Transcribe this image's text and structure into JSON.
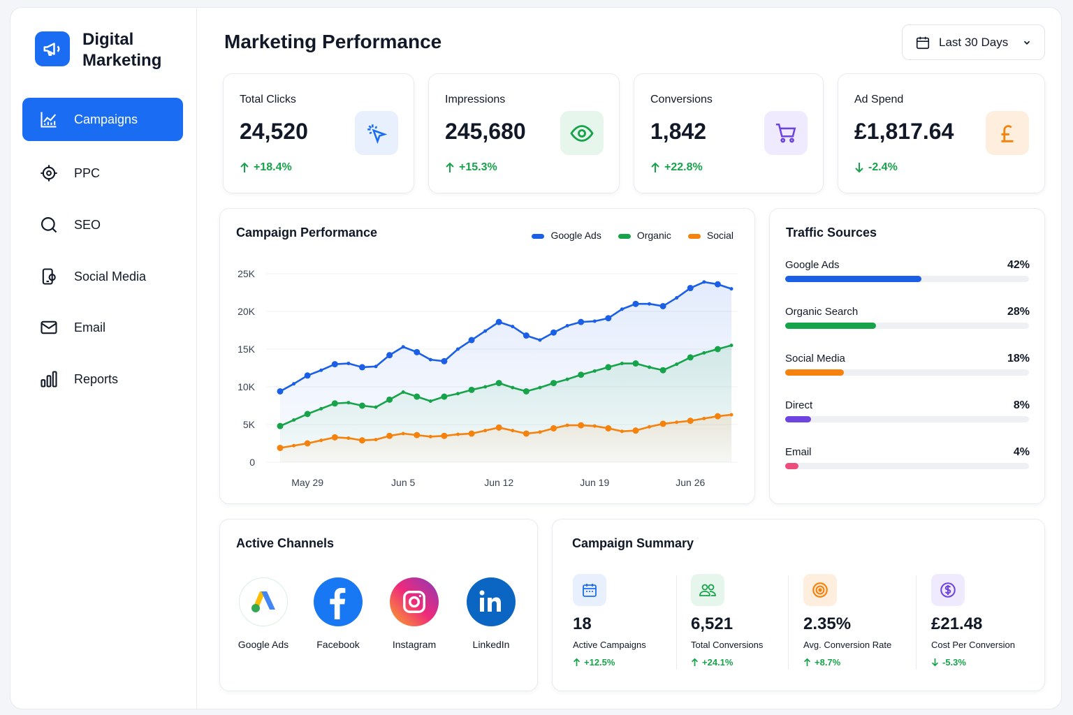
{
  "sidebar": {
    "brand": "Digital Marketing",
    "nav": [
      "Campaigns",
      "PPC",
      "SEO",
      "Social Media",
      "Email",
      "Reports"
    ]
  },
  "header": {
    "title": "Marketing Performance",
    "range": "Last 30 Days"
  },
  "kpis": [
    {
      "label": "Total Clicks",
      "value": "24,520",
      "change": "+18.4%"
    },
    {
      "label": "Impressions",
      "value": "245,680",
      "change": "+15.3%"
    },
    {
      "label": "Conversions",
      "value": "1,842",
      "change": "+22.8%"
    },
    {
      "label": "Ad Spend",
      "value": "£1,817.64",
      "change": "-2.4%"
    }
  ],
  "chart_data": [
    {
      "type": "line",
      "title": "Campaign Performance",
      "categories": [
        null,
        null,
        "May 29",
        null,
        null,
        null,
        null,
        null,
        null,
        "Jun 5",
        null,
        null,
        null,
        null,
        null,
        null,
        "Jun 12",
        null,
        null,
        null,
        null,
        null,
        null,
        "Jun 19",
        null,
        null,
        null,
        null,
        null,
        null,
        "Jun 26",
        null,
        null,
        null
      ],
      "ylim": [
        0,
        25000
      ],
      "yticks": [
        0,
        {
          "value": 5000,
          "label": "5K"
        },
        {
          "value": 10000,
          "label": "10K"
        },
        {
          "value": 15000,
          "label": "15K"
        },
        {
          "value": 20000,
          "label": "20K"
        },
        {
          "value": 25000,
          "label": "25K"
        }
      ],
      "grid": true,
      "series": [
        {
          "name": "Google Ads",
          "color": "#1a5fe6",
          "values": [
            9400,
            10400,
            11500,
            12200,
            13000,
            13100,
            12600,
            12700,
            14200,
            15300,
            14600,
            13600,
            13400,
            15000,
            16200,
            17400,
            18600,
            18000,
            16800,
            16200,
            17200,
            18100,
            18600,
            18700,
            19100,
            20300,
            21000,
            21000,
            20700,
            21800,
            23100,
            23900,
            23600,
            23000
          ]
        },
        {
          "name": "Organic",
          "color": "#16a34a",
          "values": [
            4800,
            5600,
            6400,
            7100,
            7800,
            7900,
            7500,
            7300,
            8300,
            9300,
            8700,
            8100,
            8700,
            9100,
            9600,
            10000,
            10500,
            9900,
            9400,
            9900,
            10500,
            11000,
            11600,
            12100,
            12600,
            13100,
            13100,
            12600,
            12200,
            13000,
            13900,
            14500,
            15000,
            15500
          ]
        },
        {
          "name": "Social",
          "color": "#f5820d",
          "values": [
            1900,
            2200,
            2500,
            2900,
            3300,
            3200,
            2900,
            3000,
            3500,
            3800,
            3600,
            3400,
            3500,
            3700,
            3800,
            4200,
            4600,
            4200,
            3800,
            4000,
            4500,
            4900,
            4900,
            4800,
            4500,
            4100,
            4200,
            4700,
            5100,
            5300,
            5500,
            5800,
            6100,
            6300
          ]
        }
      ]
    },
    {
      "type": "bar",
      "orientation": "horizontal",
      "title": "Traffic Sources",
      "categories": [
        "Google Ads",
        "Organic Search",
        "Social Media",
        "Direct",
        "Email"
      ],
      "values": [
        42,
        28,
        18,
        8,
        4
      ],
      "value_labels": [
        "42%",
        "28%",
        "18%",
        "8%",
        "4%"
      ],
      "colors": [
        "#1a5fe6",
        "#16a34a",
        "#f5820d",
        "#6d44e0",
        "#ec4d7a"
      ],
      "xlim": [
        0,
        75
      ]
    }
  ],
  "channels": {
    "title": "Active Channels",
    "items": [
      "Google Ads",
      "Facebook",
      "Instagram",
      "LinkedIn"
    ]
  },
  "summary": {
    "title": "Campaign Summary",
    "items": [
      {
        "value": "18",
        "label": "Active Campaigns",
        "change": "+12.5%"
      },
      {
        "value": "6,521",
        "label": "Total Conversions",
        "change": "+24.1%"
      },
      {
        "value": "2.35%",
        "label": "Avg. Conversion Rate",
        "change": "+8.7%"
      },
      {
        "value": "£21.48",
        "label": "Cost Per Conversion",
        "change": "-5.3%"
      }
    ]
  }
}
